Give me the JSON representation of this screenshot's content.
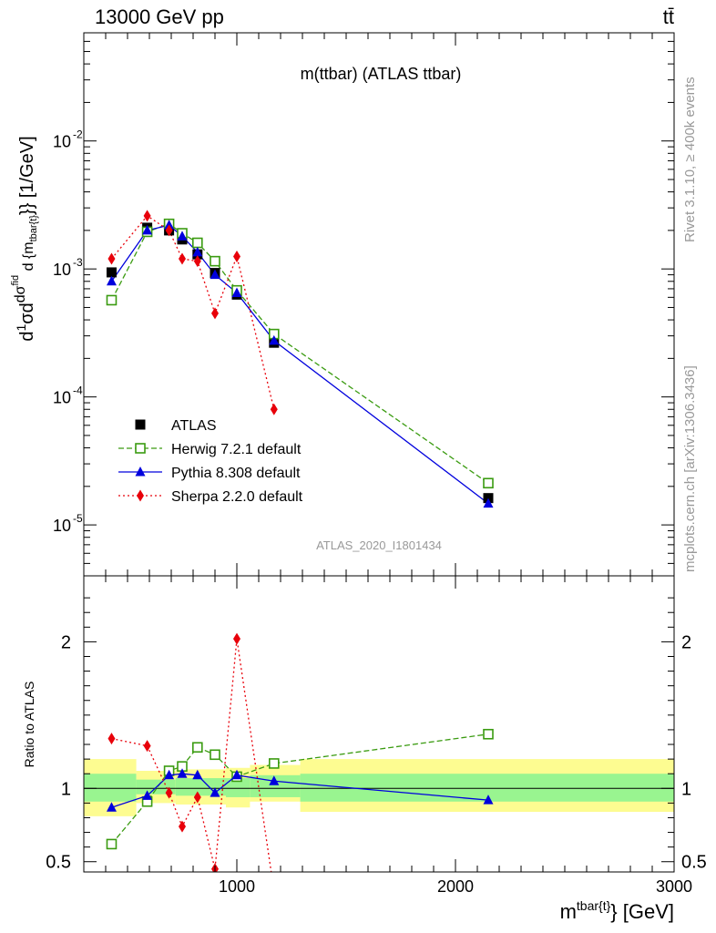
{
  "header": {
    "energy_label": "13000 GeV pp",
    "process_label": "tt̄"
  },
  "side_labels": {
    "rivet": "Rivet 3.1.10, ≥ 400k events",
    "mcplots": "mcplots.cern.ch [arXiv:1306.3436]"
  },
  "chart_data": {
    "type": "scatter",
    "title": "m(ttbar) (ATLAS ttbar)",
    "watermark": "ATLAS_2020_I1801434",
    "xlabel": "m^{tbar{t}} [GeV]",
    "ylabel": "d(1/σ)dσ^{fid}/d{m^{tbar{t}}} [1/GeV]",
    "ratio_ylabel": "Ratio to ATLAS",
    "xlim": [
      300,
      3000
    ],
    "ylim": [
      4e-06,
      0.07
    ],
    "log_y": true,
    "ratio_ylim": [
      0.43,
      2.45
    ],
    "x_ticks": [
      "1000",
      "2000",
      "3000"
    ],
    "y_ticks": [
      "10^-5",
      "10^-4",
      "10^-3",
      "10^-2"
    ],
    "ratio_ticks": [
      "0.5",
      "1",
      "2"
    ],
    "legend": [
      "ATLAS",
      "Herwig 7.2.1 default",
      "Pythia 8.308 default",
      "Sherpa 2.2.0 default"
    ],
    "legend_position": "lower-left",
    "colors": {
      "atlas": "#000000",
      "herwig": "#3a9b10",
      "pythia": "#0000dd",
      "sherpa": "#e8000a",
      "band_inner": "#99f590",
      "band_outer": "#fdfc91"
    },
    "data": {
      "name": "ATLAS",
      "x": [
        427,
        590,
        690,
        750,
        820,
        900,
        1000,
        1170,
        2150
      ],
      "y": [
        0.00094,
        0.0021,
        0.002,
        0.0017,
        0.0013,
        0.00093,
        0.00063,
        0.000265,
        1.62e-05
      ]
    },
    "series": [
      {
        "name": "Herwig 7.2.1 default",
        "x": [
          427,
          590,
          690,
          750,
          820,
          900,
          1000,
          1170,
          2150
        ],
        "y": [
          0.00057,
          0.00195,
          0.00225,
          0.0019,
          0.0016,
          0.00115,
          0.00068,
          0.00031,
          2.12e-05
        ],
        "ratio": [
          0.62,
          0.91,
          1.12,
          1.15,
          1.28,
          1.23,
          1.08,
          1.17,
          1.37
        ]
      },
      {
        "name": "Pythia 8.308 default",
        "x": [
          427,
          590,
          690,
          750,
          820,
          900,
          1000,
          1170,
          2150
        ],
        "y": [
          0.0008,
          0.002,
          0.0022,
          0.0018,
          0.00135,
          0.0009,
          0.00065,
          0.000275,
          1.47e-05
        ],
        "ratio": [
          0.87,
          0.95,
          1.09,
          1.1,
          1.09,
          0.97,
          1.09,
          1.05,
          0.92
        ]
      },
      {
        "name": "Sherpa 2.2.0 default",
        "x": [
          427,
          590,
          690,
          750,
          820,
          900,
          1000,
          1170
        ],
        "y": [
          0.0012,
          0.0026,
          0.002,
          0.0012,
          0.00115,
          0.00045,
          0.00125,
          8e-05
        ],
        "ratio": [
          1.34,
          1.29,
          0.97,
          0.74,
          0.94,
          0.45,
          2.02,
          0.3
        ]
      }
    ],
    "uncertainty_bands": [
      {
        "x_range": [
          300,
          540
        ],
        "inner": [
          0.91,
          1.1
        ],
        "outer": [
          0.81,
          1.2
        ]
      },
      {
        "x_range": [
          540,
          720
        ],
        "inner": [
          0.96,
          1.06
        ],
        "outer": [
          0.9,
          1.12
        ]
      },
      {
        "x_range": [
          720,
          950
        ],
        "inner": [
          0.95,
          1.07
        ],
        "outer": [
          0.89,
          1.13
        ]
      },
      {
        "x_range": [
          950,
          1060
        ],
        "inner": [
          0.94,
          1.07
        ],
        "outer": [
          0.87,
          1.14
        ]
      },
      {
        "x_range": [
          1060,
          1290
        ],
        "inner": [
          0.94,
          1.09
        ],
        "outer": [
          0.91,
          1.16
        ]
      },
      {
        "x_range": [
          1290,
          3000
        ],
        "inner": [
          0.91,
          1.1
        ],
        "outer": [
          0.84,
          1.2
        ]
      }
    ]
  }
}
